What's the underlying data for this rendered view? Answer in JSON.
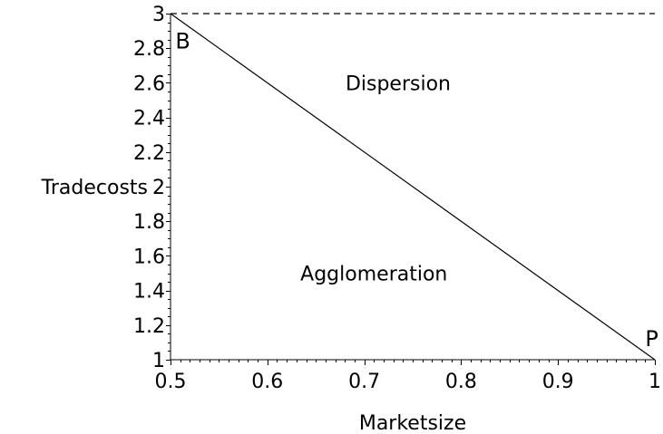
{
  "chart_data": {
    "type": "line",
    "xlabel": "Marketsize",
    "ylabel": "Tradecosts",
    "xlim": [
      0.5,
      1
    ],
    "ylim": [
      1,
      3
    ],
    "grid": false,
    "x_ticks": [
      {
        "value": 0.5,
        "label": "0.5"
      },
      {
        "value": 0.6,
        "label": "0.6"
      },
      {
        "value": 0.7,
        "label": "0.7"
      },
      {
        "value": 0.8,
        "label": "0.8"
      },
      {
        "value": 0.9,
        "label": "0.9"
      },
      {
        "value": 1,
        "label": "1"
      }
    ],
    "y_ticks": [
      {
        "value": 1,
        "label": "1"
      },
      {
        "value": 1.2,
        "label": "1.2"
      },
      {
        "value": 1.4,
        "label": "1.4"
      },
      {
        "value": 1.6,
        "label": "1.6"
      },
      {
        "value": 1.8,
        "label": "1.8"
      },
      {
        "value": 2,
        "label": "2"
      },
      {
        "value": 2.2,
        "label": "2.2"
      },
      {
        "value": 2.4,
        "label": "2.4"
      },
      {
        "value": 2.6,
        "label": "2.6"
      },
      {
        "value": 2.8,
        "label": "2.8"
      },
      {
        "value": 3,
        "label": "3"
      }
    ],
    "series": [
      {
        "style": "solid",
        "color": "#000000",
        "points": [
          {
            "x": 0.5,
            "y": 3
          },
          {
            "x": 1,
            "y": 1
          }
        ]
      },
      {
        "style": "dashed",
        "color": "#000000",
        "points": [
          {
            "x": 0.5,
            "y": 3
          },
          {
            "x": 1,
            "y": 3
          }
        ]
      }
    ],
    "annotations": [
      {
        "text": "B",
        "x": 0.505,
        "y": 2.84
      },
      {
        "text": "P",
        "x": 0.99,
        "y": 1.12
      },
      {
        "text": "Dispersion",
        "x": 0.735,
        "y": 2.6
      },
      {
        "text": "Agglomeration",
        "x": 0.71,
        "y": 1.5
      }
    ]
  }
}
